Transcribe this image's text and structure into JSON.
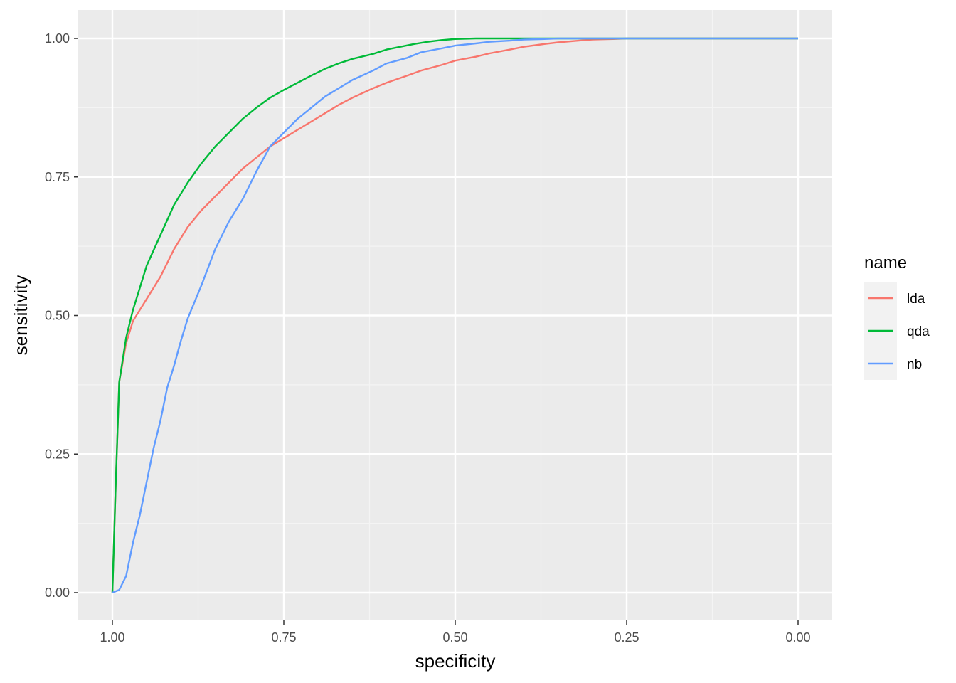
{
  "chart_data": {
    "type": "line",
    "xlabel": "specificity",
    "ylabel": "sensitivity",
    "xlim": [
      1.0,
      0.0
    ],
    "ylim": [
      0.0,
      1.0
    ],
    "x_reversed": true,
    "x_ticks": [
      1.0,
      0.75,
      0.5,
      0.25,
      0.0
    ],
    "x_tick_labels": [
      "1.00",
      "0.75",
      "0.50",
      "0.25",
      "0.00"
    ],
    "y_ticks": [
      0.0,
      0.25,
      0.5,
      0.75,
      1.0
    ],
    "y_tick_labels": [
      "0.00",
      "0.25",
      "0.50",
      "0.75",
      "1.00"
    ],
    "grid": true,
    "legend": {
      "title": "name",
      "position": "right"
    },
    "series": [
      {
        "name": "lda",
        "color": "#F8766D",
        "points": [
          [
            1.0,
            0.0
          ],
          [
            0.995,
            0.2
          ],
          [
            0.99,
            0.38
          ],
          [
            0.98,
            0.45
          ],
          [
            0.97,
            0.49
          ],
          [
            0.95,
            0.53
          ],
          [
            0.93,
            0.57
          ],
          [
            0.91,
            0.62
          ],
          [
            0.89,
            0.66
          ],
          [
            0.87,
            0.69
          ],
          [
            0.85,
            0.715
          ],
          [
            0.83,
            0.74
          ],
          [
            0.81,
            0.765
          ],
          [
            0.79,
            0.785
          ],
          [
            0.77,
            0.805
          ],
          [
            0.75,
            0.82
          ],
          [
            0.73,
            0.835
          ],
          [
            0.71,
            0.85
          ],
          [
            0.69,
            0.865
          ],
          [
            0.67,
            0.88
          ],
          [
            0.65,
            0.893
          ],
          [
            0.62,
            0.91
          ],
          [
            0.6,
            0.92
          ],
          [
            0.57,
            0.933
          ],
          [
            0.55,
            0.942
          ],
          [
            0.52,
            0.952
          ],
          [
            0.5,
            0.96
          ],
          [
            0.47,
            0.967
          ],
          [
            0.45,
            0.973
          ],
          [
            0.42,
            0.98
          ],
          [
            0.4,
            0.985
          ],
          [
            0.37,
            0.99
          ],
          [
            0.35,
            0.993
          ],
          [
            0.32,
            0.996
          ],
          [
            0.3,
            0.998
          ],
          [
            0.27,
            0.999
          ],
          [
            0.25,
            1.0
          ],
          [
            0.0,
            1.0
          ]
        ]
      },
      {
        "name": "qda",
        "color": "#00BA38",
        "points": [
          [
            1.0,
            0.0
          ],
          [
            0.995,
            0.2
          ],
          [
            0.99,
            0.38
          ],
          [
            0.98,
            0.46
          ],
          [
            0.97,
            0.51
          ],
          [
            0.96,
            0.55
          ],
          [
            0.95,
            0.59
          ],
          [
            0.93,
            0.645
          ],
          [
            0.91,
            0.7
          ],
          [
            0.89,
            0.74
          ],
          [
            0.87,
            0.775
          ],
          [
            0.85,
            0.805
          ],
          [
            0.83,
            0.83
          ],
          [
            0.81,
            0.855
          ],
          [
            0.79,
            0.875
          ],
          [
            0.77,
            0.893
          ],
          [
            0.75,
            0.907
          ],
          [
            0.73,
            0.92
          ],
          [
            0.71,
            0.933
          ],
          [
            0.69,
            0.945
          ],
          [
            0.67,
            0.955
          ],
          [
            0.65,
            0.963
          ],
          [
            0.62,
            0.972
          ],
          [
            0.6,
            0.98
          ],
          [
            0.58,
            0.985
          ],
          [
            0.56,
            0.99
          ],
          [
            0.54,
            0.994
          ],
          [
            0.52,
            0.997
          ],
          [
            0.5,
            0.999
          ],
          [
            0.47,
            1.0
          ],
          [
            0.0,
            1.0
          ]
        ]
      },
      {
        "name": "nb",
        "color": "#619CFF",
        "points": [
          [
            1.0,
            0.0
          ],
          [
            0.99,
            0.005
          ],
          [
            0.98,
            0.03
          ],
          [
            0.97,
            0.09
          ],
          [
            0.96,
            0.14
          ],
          [
            0.95,
            0.2
          ],
          [
            0.94,
            0.26
          ],
          [
            0.93,
            0.31
          ],
          [
            0.92,
            0.37
          ],
          [
            0.91,
            0.41
          ],
          [
            0.9,
            0.455
          ],
          [
            0.89,
            0.495
          ],
          [
            0.87,
            0.555
          ],
          [
            0.85,
            0.62
          ],
          [
            0.83,
            0.67
          ],
          [
            0.81,
            0.71
          ],
          [
            0.79,
            0.76
          ],
          [
            0.77,
            0.805
          ],
          [
            0.75,
            0.83
          ],
          [
            0.73,
            0.855
          ],
          [
            0.71,
            0.875
          ],
          [
            0.69,
            0.895
          ],
          [
            0.67,
            0.91
          ],
          [
            0.65,
            0.925
          ],
          [
            0.62,
            0.942
          ],
          [
            0.6,
            0.955
          ],
          [
            0.57,
            0.965
          ],
          [
            0.55,
            0.975
          ],
          [
            0.52,
            0.982
          ],
          [
            0.5,
            0.987
          ],
          [
            0.47,
            0.991
          ],
          [
            0.45,
            0.994
          ],
          [
            0.42,
            0.996
          ],
          [
            0.4,
            0.998
          ],
          [
            0.37,
            0.999
          ],
          [
            0.35,
            1.0
          ],
          [
            0.0,
            1.0
          ]
        ]
      }
    ]
  }
}
